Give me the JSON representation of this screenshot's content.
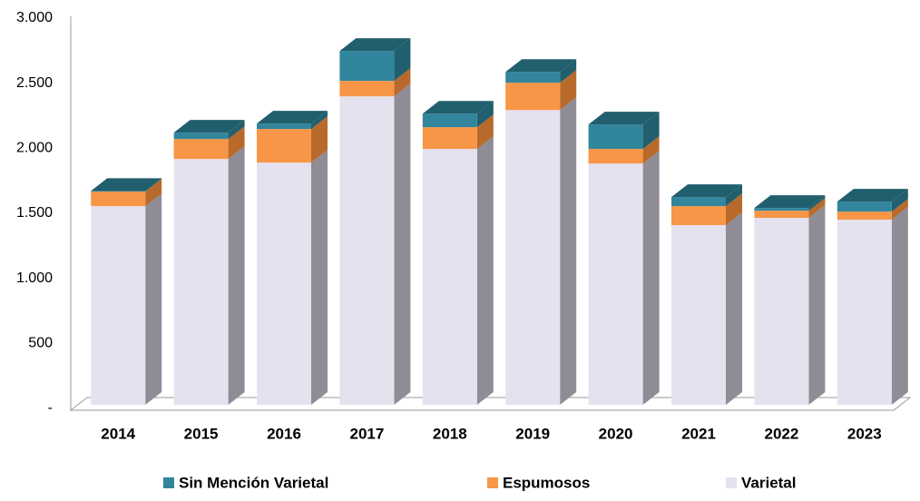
{
  "chart_data": {
    "type": "stacked-bar-3d",
    "categories": [
      "2014",
      "2015",
      "2016",
      "2017",
      "2018",
      "2019",
      "2020",
      "2021",
      "2022",
      "2023"
    ],
    "series": [
      {
        "name": "Varietal",
        "color": "#e6e1ef",
        "values": [
          1527,
          1890,
          1862,
          2371,
          1967,
          2266,
          1855,
          1381,
          1437,
          1423
        ]
      },
      {
        "name": "Espumosos",
        "color": "#f79646",
        "values": [
          112,
          153,
          258,
          119,
          167,
          210,
          112,
          146,
          55,
          62
        ]
      },
      {
        "name": "Sin Mención Varietal",
        "color": "#31859c",
        "values": [
          5,
          49,
          42,
          230,
          104,
          83,
          188,
          70,
          21,
          77
        ]
      }
    ],
    "ylim": [
      0,
      3000
    ],
    "yticks": [
      {
        "value": 0,
        "label": "-"
      },
      500,
      {
        "value": 1000,
        "label": "1.000"
      },
      {
        "value": 1500,
        "label": "1.500"
      },
      {
        "value": 2000,
        "label": "2.000"
      },
      {
        "value": 2500,
        "label": "2.500"
      },
      {
        "value": 3000,
        "label": "3.000"
      }
    ],
    "legend": "bottom"
  }
}
